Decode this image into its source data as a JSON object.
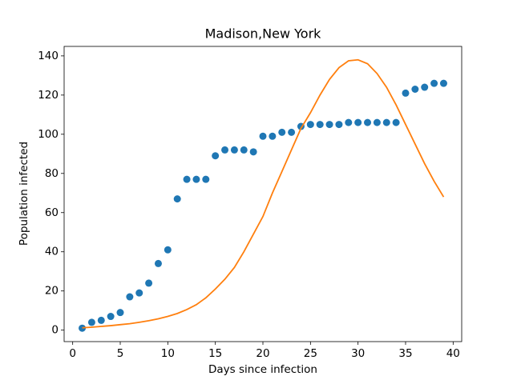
{
  "chart_data": {
    "type": "scatter",
    "title": "Madison,New York",
    "x_label": "Days since infection",
    "y_label": "Population infected",
    "x": [
      1,
      2,
      3,
      4,
      5,
      6,
      7,
      8,
      9,
      10,
      11,
      12,
      13,
      14,
      15,
      16,
      17,
      18,
      19,
      20,
      21,
      22,
      23,
      24,
      25,
      26,
      27,
      28,
      29,
      30,
      31,
      32,
      33,
      34,
      35,
      36,
      37,
      38,
      39
    ],
    "series": [
      {
        "type": "scatter",
        "color": "#1f77b4",
        "values": [
          1,
          4,
          5,
          7,
          9,
          17,
          19,
          24,
          34,
          41,
          67,
          77,
          77,
          77,
          89,
          92,
          92,
          92,
          91,
          99,
          99,
          101,
          101,
          104,
          105,
          105,
          105,
          105,
          106,
          106,
          106,
          106,
          106,
          106,
          121,
          123,
          124,
          126,
          126
        ]
      },
      {
        "type": "line",
        "color": "#ff7f0e",
        "values": [
          1.2,
          1.5,
          1.9,
          2.3,
          2.8,
          3.3,
          4,
          4.8,
          5.8,
          7,
          8.5,
          10.5,
          13,
          16.5,
          21,
          26,
          32,
          40,
          49,
          58,
          70,
          81,
          92,
          103,
          111,
          120,
          128,
          134,
          137.5,
          138,
          136,
          131,
          124,
          115,
          105,
          95,
          85,
          76,
          68
        ]
      }
    ],
    "xlim": [
      -0.9,
      40.9
    ],
    "ylim": [
      -5.85,
      144.85
    ],
    "xticks": [
      0,
      5,
      10,
      15,
      20,
      25,
      30,
      35,
      40
    ],
    "yticks": [
      0,
      20,
      40,
      60,
      80,
      100,
      120,
      140
    ]
  }
}
